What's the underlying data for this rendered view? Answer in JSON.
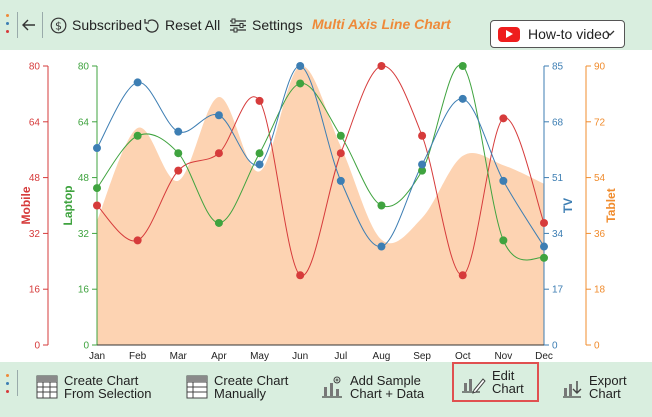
{
  "toolbar": {
    "subscribed": "Subscribed",
    "reset_all": "Reset All",
    "settings": "Settings",
    "chart_title": "Multi Axis Line Chart",
    "howto": "How-to video"
  },
  "bottom": {
    "create_from_selection": [
      "Create Chart",
      "From Selection"
    ],
    "create_manually": [
      "Create Chart",
      "Manually"
    ],
    "add_sample": [
      "Add Sample",
      "Chart + Data"
    ],
    "edit_chart": [
      "Edit",
      "Chart"
    ],
    "export_chart": [
      "Export",
      "Chart"
    ]
  },
  "colors": {
    "mobile": "#d63b3b",
    "laptop": "#3fa33f",
    "tv": "#3d7eb3",
    "tablet": "#f08c2e",
    "tablet_area": "#fdd3b2",
    "bar_bg": "#d9eedf"
  },
  "chart_data": {
    "type": "line",
    "x": [
      "Jan",
      "Feb",
      "Mar",
      "Apr",
      "May",
      "Jun",
      "Jul",
      "Aug",
      "Sep",
      "Oct",
      "Nov",
      "Dec"
    ],
    "axes": [
      {
        "id": "mobile",
        "label": "Mobile",
        "position": "left-outer",
        "ticks": [
          0,
          16,
          32,
          48,
          64,
          80
        ],
        "range": [
          0,
          80
        ]
      },
      {
        "id": "laptop",
        "label": "Laptop",
        "position": "left-inner",
        "ticks": [
          0,
          16,
          32,
          48,
          64,
          80
        ],
        "range": [
          0,
          80
        ]
      },
      {
        "id": "tv",
        "label": "TV",
        "position": "right-inner",
        "ticks": [
          0,
          17,
          34,
          51,
          68,
          85
        ],
        "range": [
          0,
          85
        ]
      },
      {
        "id": "tablet",
        "label": "Tablet",
        "position": "right-outer",
        "ticks": [
          0,
          18,
          36,
          54,
          72,
          90
        ],
        "range": [
          0,
          90
        ]
      }
    ],
    "series": [
      {
        "name": "Mobile",
        "axis": "mobile",
        "style": "line",
        "values": [
          40,
          30,
          50,
          55,
          70,
          20,
          55,
          80,
          60,
          20,
          65,
          35
        ]
      },
      {
        "name": "Laptop",
        "axis": "laptop",
        "style": "line",
        "values": [
          45,
          60,
          55,
          35,
          55,
          75,
          60,
          40,
          50,
          80,
          30,
          25
        ]
      },
      {
        "name": "TV",
        "axis": "tv",
        "style": "line",
        "values": [
          60,
          80,
          65,
          70,
          55,
          85,
          50,
          30,
          55,
          75,
          50,
          30
        ]
      },
      {
        "name": "Tablet",
        "axis": "tablet",
        "style": "area",
        "values": [
          40,
          70,
          53,
          80,
          56,
          90,
          64,
          34,
          41,
          61,
          58,
          52
        ]
      }
    ],
    "grid": false,
    "legend": "none"
  }
}
